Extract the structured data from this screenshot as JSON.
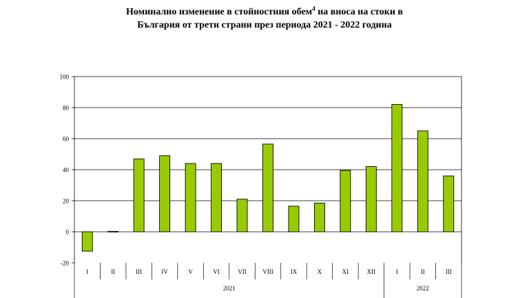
{
  "title": {
    "line1_before": "Номинално изменение в стойностния обем",
    "line1_sup": "4",
    "line1_after": " на вноса на стоки в",
    "line2": "България от трети страни през периода 2021 - 2022 година"
  },
  "chart_data": {
    "type": "bar",
    "categories": [
      "I",
      "II",
      "III",
      "IV",
      "V",
      "VI",
      "VII",
      "VIII",
      "IX",
      "X",
      "XI",
      "XII",
      "I",
      "II",
      "III"
    ],
    "groups": [
      {
        "label": "2021",
        "start": 0,
        "end": 11
      },
      {
        "label": "2022",
        "start": 12,
        "end": 14
      }
    ],
    "values": [
      -12.5,
      0.3,
      47,
      49,
      44,
      44,
      21,
      56.5,
      16.5,
      18.5,
      39.5,
      42,
      82,
      65,
      36
    ],
    "ylim": [
      -20,
      100
    ],
    "yticks": [
      -20,
      0,
      20,
      40,
      60,
      80,
      100
    ],
    "grid": true,
    "legend": "none",
    "colors": {
      "bar_fill": "#99cc00",
      "bar_stroke": "#000000",
      "grid": "#000000"
    }
  }
}
